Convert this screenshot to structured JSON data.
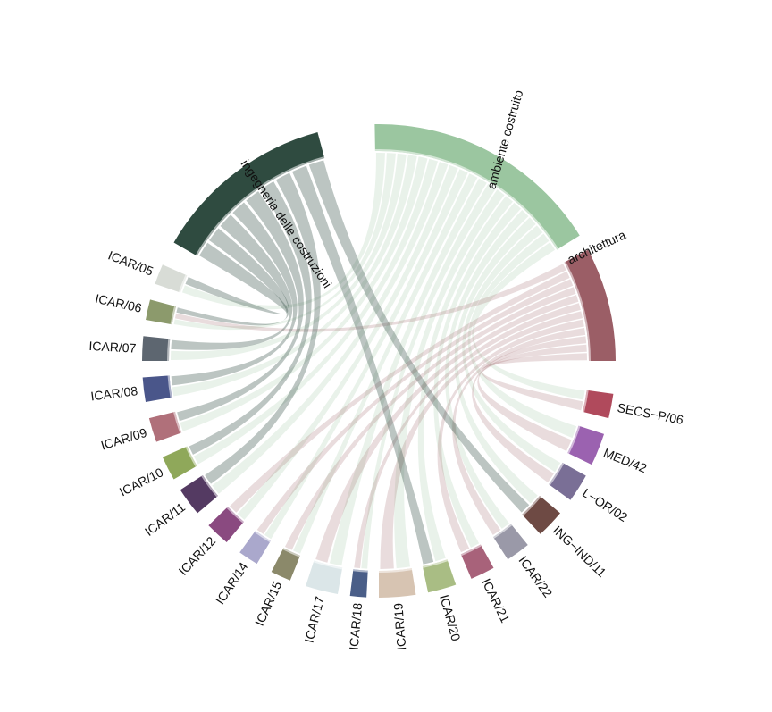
{
  "chart_data": {
    "type": "chord",
    "title": "",
    "groups": [
      {
        "id": "ingegneria",
        "label": "ingegneria delle costruzioni",
        "color": "#2f4b40"
      },
      {
        "id": "ambiente",
        "label": "ambiente costruito",
        "color": "#9bc6a0"
      },
      {
        "id": "architettura",
        "label": "architettura",
        "color": "#9b5e66"
      },
      {
        "id": "SECS-P/06",
        "label": "SECS−P/06",
        "color": "#b04a5c"
      },
      {
        "id": "MED/42",
        "label": "MED/42",
        "color": "#9b62b0"
      },
      {
        "id": "L-OR/02",
        "label": "L−OR/02",
        "color": "#7a6f96"
      },
      {
        "id": "ING-IND/11",
        "label": "ING−IND/11",
        "color": "#6e4a44"
      },
      {
        "id": "ICAR/22",
        "label": "ICAR/22",
        "color": "#9a99a8"
      },
      {
        "id": "ICAR/21",
        "label": "ICAR/21",
        "color": "#a8627a"
      },
      {
        "id": "ICAR/20",
        "label": "ICAR/20",
        "color": "#a9bd84"
      },
      {
        "id": "ICAR/19",
        "label": "ICAR/19",
        "color": "#d7c4b2"
      },
      {
        "id": "ICAR/18",
        "label": "ICAR/18",
        "color": "#4a5e88"
      },
      {
        "id": "ICAR/17",
        "label": "ICAR/17",
        "color": "#dbe6e8"
      },
      {
        "id": "ICAR/15",
        "label": "ICAR/15",
        "color": "#8b896a"
      },
      {
        "id": "ICAR/14",
        "label": "ICAR/14",
        "color": "#aaa8cc"
      },
      {
        "id": "ICAR/12",
        "label": "ICAR/12",
        "color": "#8a4a80"
      },
      {
        "id": "ICAR/11",
        "label": "ICAR/11",
        "color": "#543a62"
      },
      {
        "id": "ICAR/10",
        "label": "ICAR/10",
        "color": "#8fa85a"
      },
      {
        "id": "ICAR/09",
        "label": "ICAR/09",
        "color": "#b0707a"
      },
      {
        "id": "ICAR/08",
        "label": "ICAR/08",
        "color": "#4a568a"
      },
      {
        "id": "ICAR/07",
        "label": "ICAR/07",
        "color": "#5d6670"
      },
      {
        "id": "ICAR/06",
        "label": "ICAR/06",
        "color": "#8c9a6c"
      },
      {
        "id": "ICAR/05",
        "label": "ICAR/05",
        "color": "#d8dcd6"
      }
    ],
    "links": [
      {
        "source": "ingegneria",
        "target": "ICAR/05",
        "value": 1
      },
      {
        "source": "ingegneria",
        "target": "ICAR/06",
        "value": 1
      },
      {
        "source": "ingegneria",
        "target": "ICAR/07",
        "value": 1
      },
      {
        "source": "ingegneria",
        "target": "ICAR/08",
        "value": 1
      },
      {
        "source": "ingegneria",
        "target": "ICAR/09",
        "value": 1
      },
      {
        "source": "ingegneria",
        "target": "ICAR/10",
        "value": 1
      },
      {
        "source": "ingegneria",
        "target": "ICAR/11",
        "value": 1
      },
      {
        "source": "ingegneria",
        "target": "ICAR/20",
        "value": 1
      },
      {
        "source": "ingegneria",
        "target": "ING-IND/11",
        "value": 1
      },
      {
        "source": "ambiente",
        "target": "ICAR/05",
        "value": 1
      },
      {
        "source": "ambiente",
        "target": "ICAR/06",
        "value": 1
      },
      {
        "source": "ambiente",
        "target": "ICAR/07",
        "value": 1
      },
      {
        "source": "ambiente",
        "target": "ICAR/08",
        "value": 1
      },
      {
        "source": "ambiente",
        "target": "ICAR/09",
        "value": 1
      },
      {
        "source": "ambiente",
        "target": "ICAR/10",
        "value": 1
      },
      {
        "source": "ambiente",
        "target": "ICAR/11",
        "value": 1
      },
      {
        "source": "ambiente",
        "target": "ICAR/12",
        "value": 1
      },
      {
        "source": "ambiente",
        "target": "ICAR/14",
        "value": 1
      },
      {
        "source": "ambiente",
        "target": "ICAR/15",
        "value": 1
      },
      {
        "source": "ambiente",
        "target": "ICAR/17",
        "value": 1
      },
      {
        "source": "ambiente",
        "target": "ICAR/18",
        "value": 1
      },
      {
        "source": "ambiente",
        "target": "ICAR/19",
        "value": 1
      },
      {
        "source": "ambiente",
        "target": "ICAR/20",
        "value": 1
      },
      {
        "source": "ambiente",
        "target": "ICAR/21",
        "value": 1
      },
      {
        "source": "ambiente",
        "target": "ICAR/22",
        "value": 1
      },
      {
        "source": "ambiente",
        "target": "ING-IND/11",
        "value": 1
      },
      {
        "source": "ambiente",
        "target": "L-OR/02",
        "value": 1
      },
      {
        "source": "ambiente",
        "target": "MED/42",
        "value": 1
      },
      {
        "source": "ambiente",
        "target": "SECS-P/06",
        "value": 1
      },
      {
        "source": "architettura",
        "target": "ICAR/06",
        "value": 1
      },
      {
        "source": "architettura",
        "target": "ICAR/12",
        "value": 1
      },
      {
        "source": "architettura",
        "target": "ICAR/14",
        "value": 1
      },
      {
        "source": "architettura",
        "target": "ICAR/15",
        "value": 1
      },
      {
        "source": "architettura",
        "target": "ICAR/17",
        "value": 1
      },
      {
        "source": "architettura",
        "target": "ICAR/18",
        "value": 1
      },
      {
        "source": "architettura",
        "target": "ICAR/19",
        "value": 1
      },
      {
        "source": "architettura",
        "target": "ICAR/21",
        "value": 1
      },
      {
        "source": "architettura",
        "target": "ICAR/22",
        "value": 1
      },
      {
        "source": "architettura",
        "target": "L-OR/02",
        "value": 1
      },
      {
        "source": "architettura",
        "target": "MED/42",
        "value": 1
      },
      {
        "source": "architettura",
        "target": "SECS-P/06",
        "value": 1
      }
    ]
  }
}
